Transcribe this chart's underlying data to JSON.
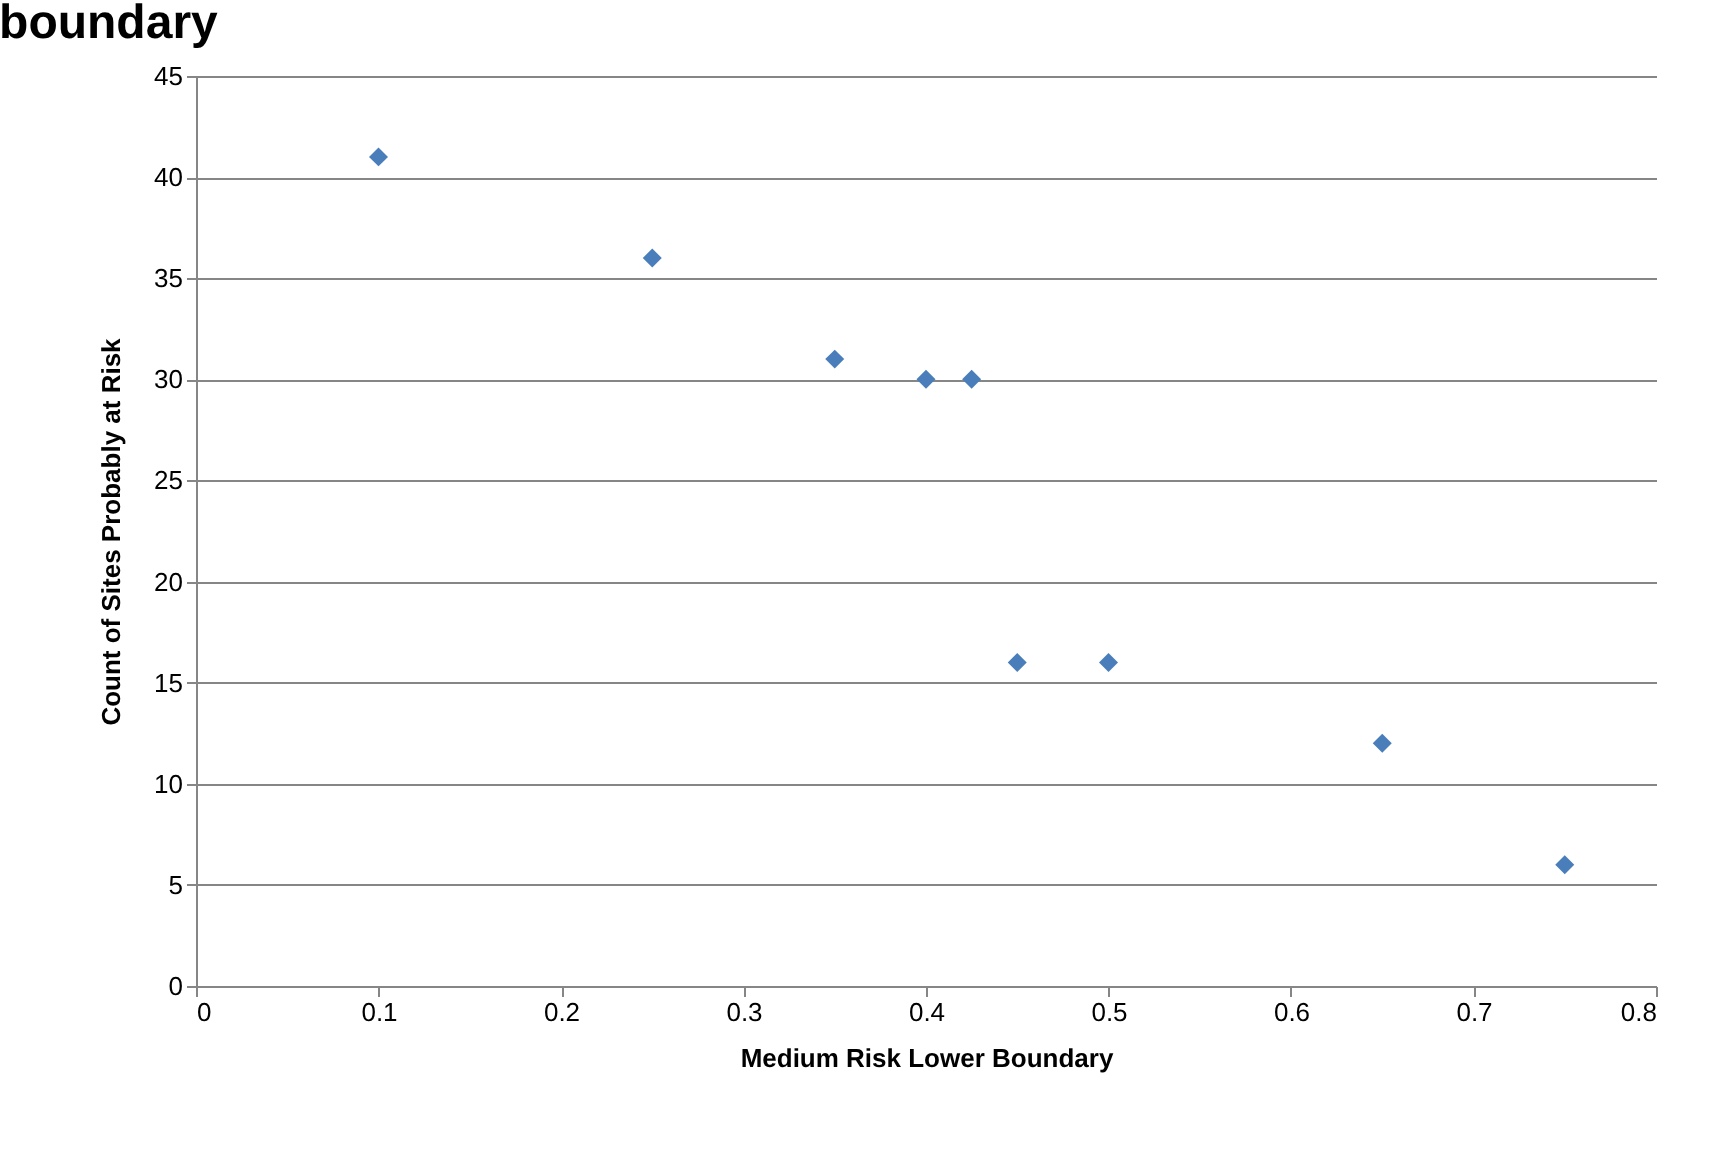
{
  "chart_data": {
    "type": "scatter",
    "title": "boundary",
    "xlabel": "Medium Risk Lower Boundary",
    "ylabel": "Count of Sites Probably at  Risk",
    "x": [
      0.1,
      0.25,
      0.35,
      0.4,
      0.425,
      0.45,
      0.5,
      0.65,
      0.75
    ],
    "series": [
      {
        "color": "#4a7ebb",
        "values": [
          41,
          36,
          31,
          30,
          30,
          16,
          16,
          12,
          6
        ]
      }
    ],
    "xlim": [
      0,
      0.8
    ],
    "xticks": [
      0,
      0.1,
      0.2,
      0.3,
      0.4,
      0.5,
      0.6,
      0.7,
      0.8
    ],
    "ylim": [
      0,
      45
    ],
    "yticks": [
      0,
      5,
      10,
      15,
      20,
      25,
      30,
      35,
      40,
      45
    ],
    "grid": "y",
    "marker": "diamond"
  }
}
